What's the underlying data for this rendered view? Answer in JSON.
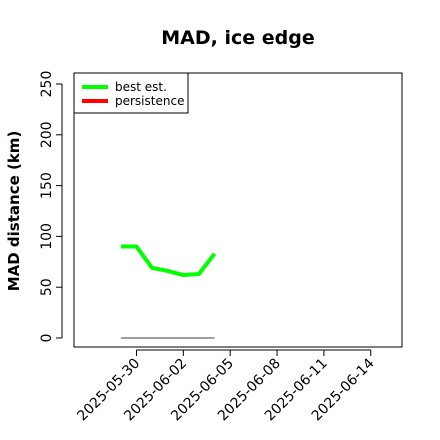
{
  "chart_data": {
    "type": "line",
    "title": "MAD, ice edge",
    "ylabel": "MAD distance (km)",
    "xlabel": "",
    "ylim": [
      0,
      250
    ],
    "yticks": [
      0,
      50,
      100,
      150,
      200,
      250
    ],
    "xlim": [
      "2025-05-26",
      "2025-06-16"
    ],
    "xticks": [
      "2025-05-30",
      "2025-06-02",
      "2025-06-05",
      "2025-06-08",
      "2025-06-11",
      "2025-06-14"
    ],
    "legend_position": "top-left",
    "series": [
      {
        "name": "best est.",
        "color": "#00ff00",
        "x": [
          "2025-05-29",
          "2025-05-30",
          "2025-05-31",
          "2025-06-01",
          "2025-06-02",
          "2025-06-03",
          "2025-06-04"
        ],
        "y": [
          90,
          90,
          69,
          66,
          62,
          63,
          83
        ]
      },
      {
        "name": "persistence",
        "color": "#ff0000",
        "x": [],
        "y": []
      }
    ],
    "reference_line": {
      "color": "#808080",
      "x": [
        "2025-05-29",
        "2025-06-04"
      ],
      "y": [
        0,
        0
      ]
    }
  }
}
